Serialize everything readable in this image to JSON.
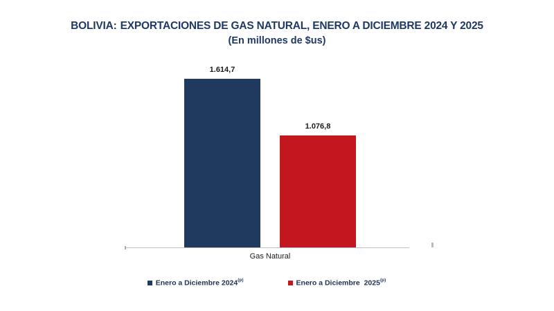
{
  "title": {
    "prefix": "BOLIVIA:",
    "main": "EXPORTACIONES DE GAS NATURAL, ENERO A DICIEMBRE 2024 Y 2025",
    "subtitle": "(En millones de $us)"
  },
  "chart_data": {
    "type": "bar",
    "title": "BOLIVIA: EXPORTACIONES DE GAS NATURAL, ENERO A DICIEMBRE 2024 Y 2025",
    "subtitle": "(En millones de $us)",
    "categories": [
      "Gas Natural"
    ],
    "series": [
      {
        "name": "Enero a Diciembre 2024",
        "superscript": "(p)",
        "values": [
          1614.7
        ],
        "display_label": "1.614,7",
        "color": "#20395F"
      },
      {
        "name": "Enero a Diciembre  2025",
        "superscript": "(p)",
        "values": [
          1076.8
        ],
        "display_label": "1.076,8",
        "color": "#C2171F"
      }
    ],
    "ylim": [
      0,
      1700
    ],
    "grid": false,
    "legend_position": "bottom",
    "axis_color": "#BFBFBF",
    "title_color": "#1F3864"
  }
}
